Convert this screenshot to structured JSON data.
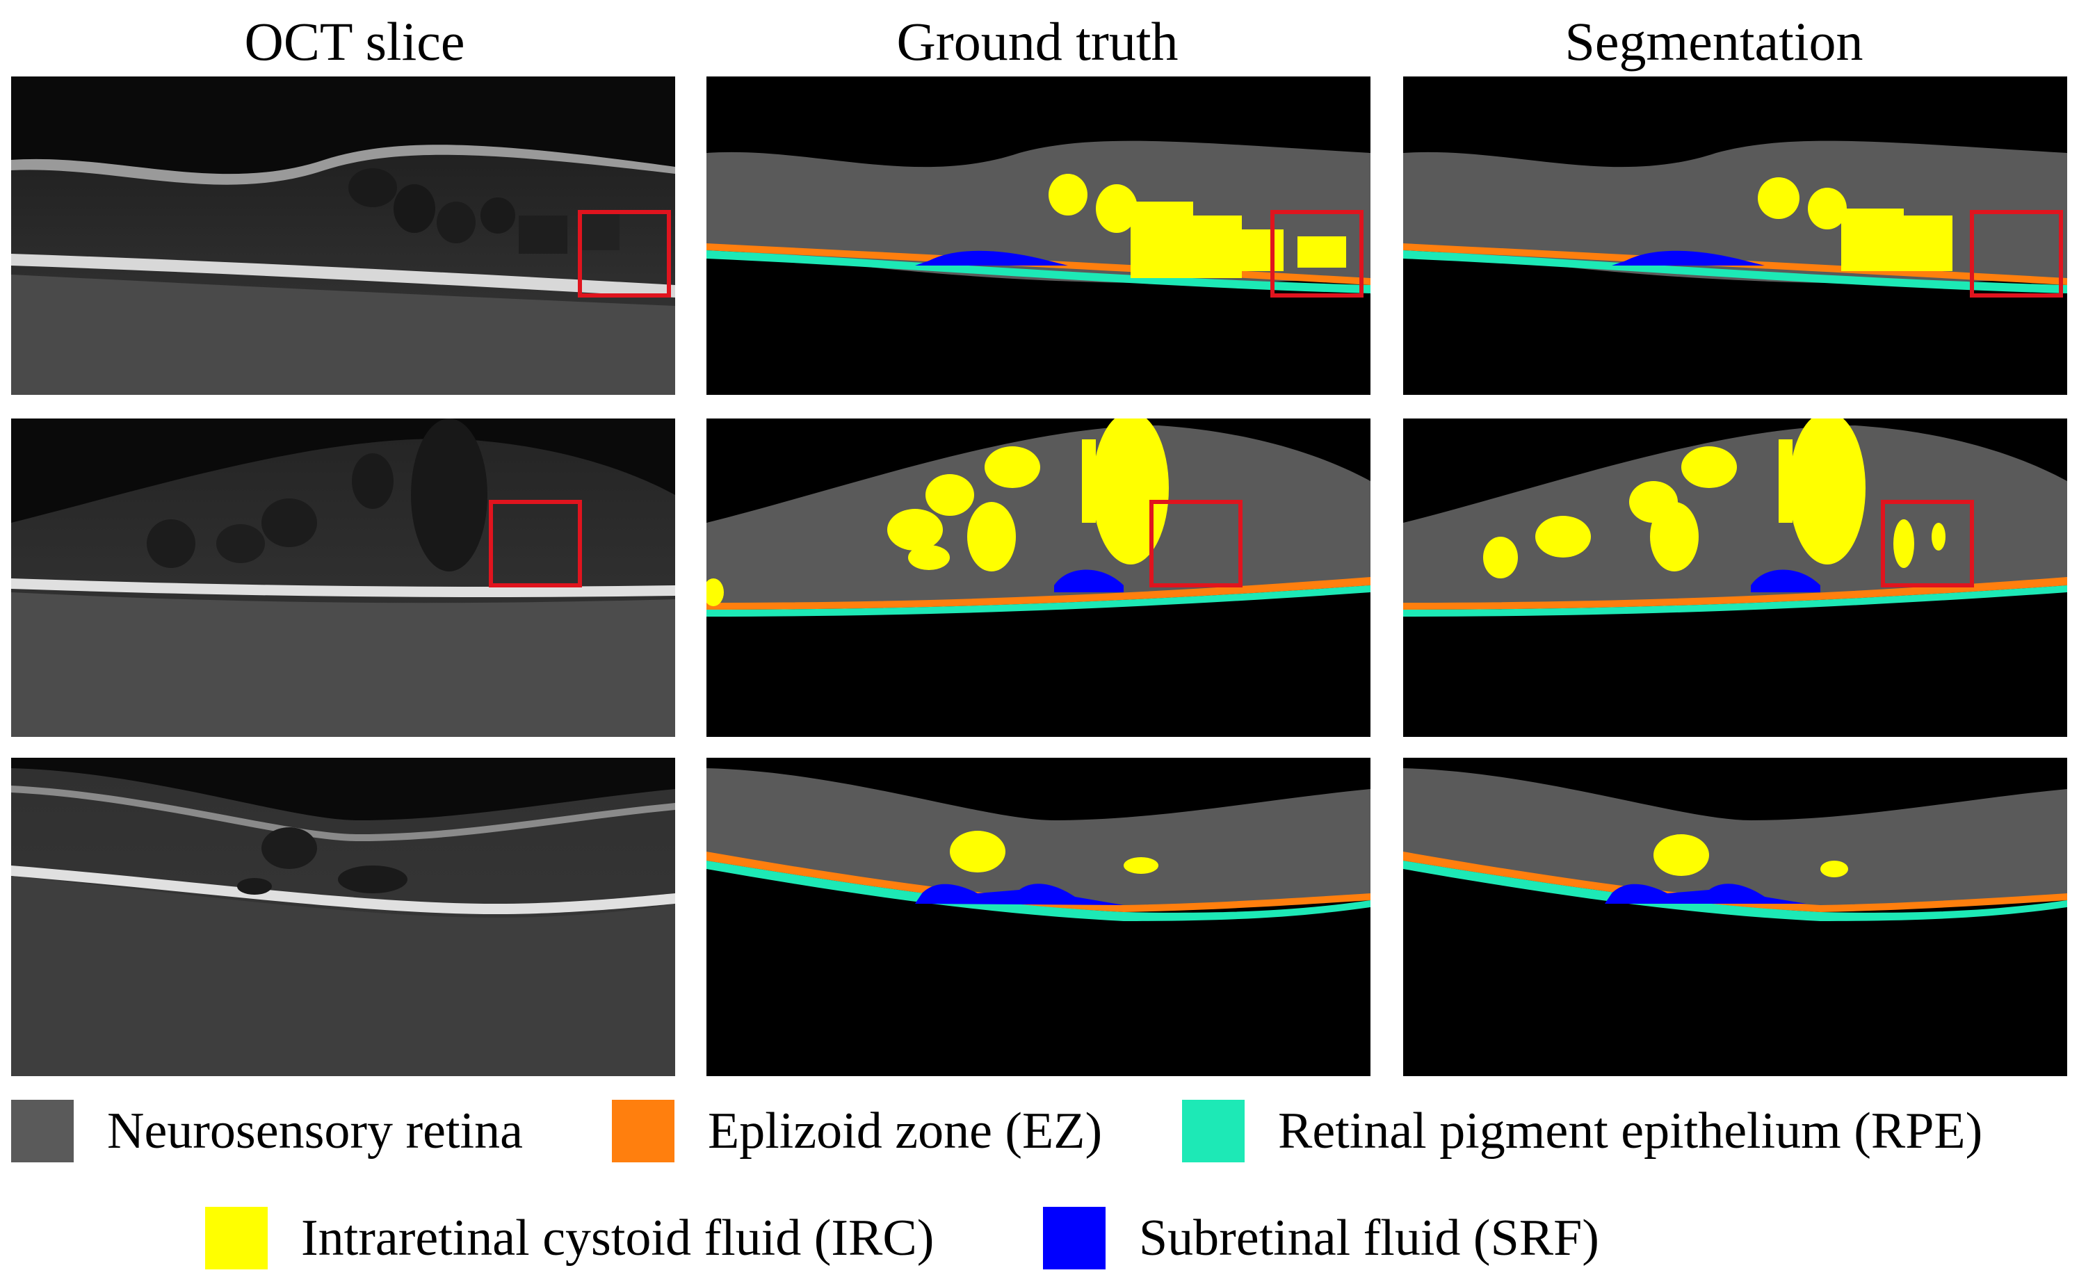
{
  "columns": {
    "oct": "OCT slice",
    "gt": "Ground truth",
    "seg": "Segmentation"
  },
  "legend": [
    {
      "label": "Neurosensory retina",
      "color": "#5a5a5a"
    },
    {
      "label": "Eplizoid zone (EZ)",
      "color": "#ff7f0e"
    },
    {
      "label": "Retinal pigment epithelium (RPE)",
      "color": "#1de9b6"
    },
    {
      "label": "Intraretinal cystoid fluid (IRC)",
      "color": "#ffff00"
    },
    {
      "label": "Subretinal fluid (SRF)",
      "color": "#0000ff"
    }
  ],
  "colors": {
    "background": "#000000",
    "retina": "#5a5a5a",
    "ez": "#ff7f0e",
    "rpe": "#1de9b6",
    "irc": "#ffff00",
    "srf": "#0000ff",
    "highlight_box": "#e0141e"
  }
}
